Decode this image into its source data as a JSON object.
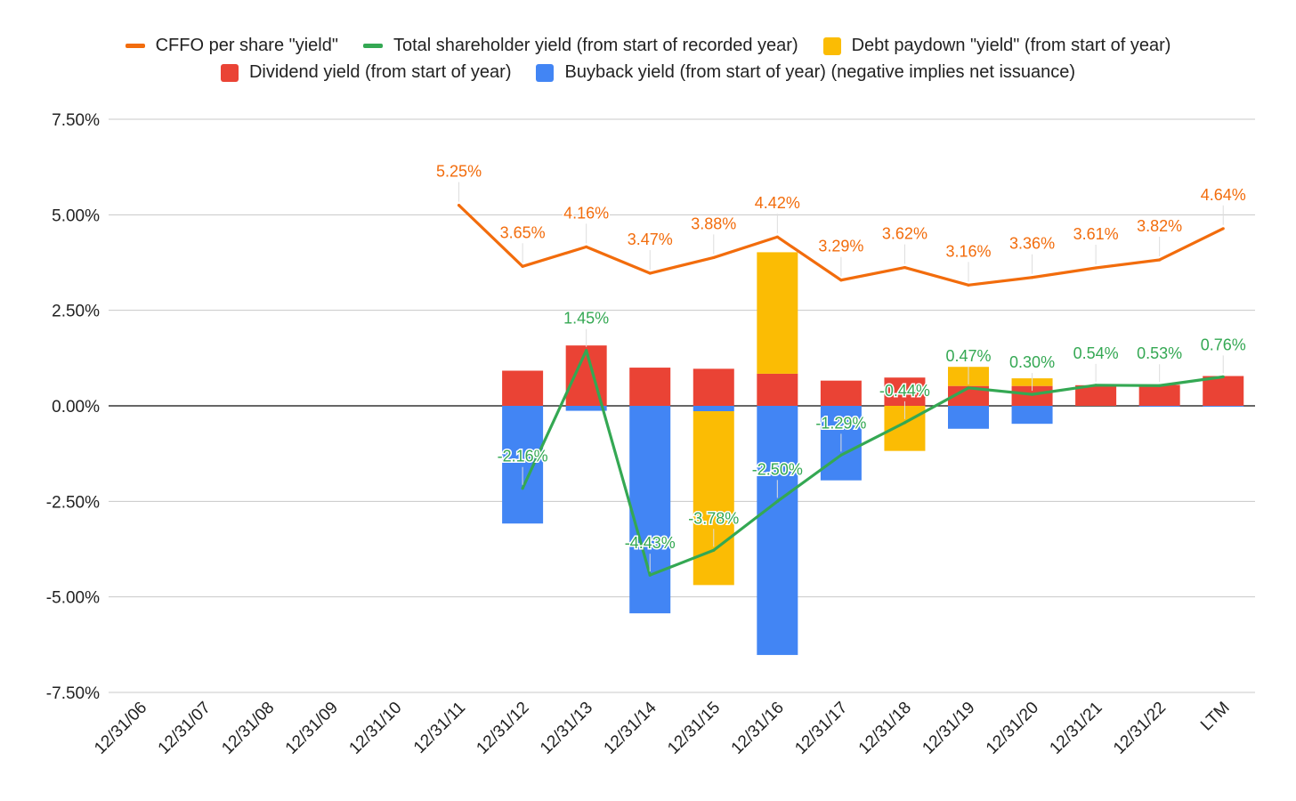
{
  "chart_data": {
    "type": "bar",
    "categories": [
      "12/31/06",
      "12/31/07",
      "12/31/08",
      "12/31/09",
      "12/31/10",
      "12/31/11",
      "12/31/12",
      "12/31/13",
      "12/31/14",
      "12/31/15",
      "12/31/16",
      "12/31/17",
      "12/31/18",
      "12/31/19",
      "12/31/20",
      "12/31/21",
      "12/31/22",
      "LTM"
    ],
    "ylim": [
      -7.5,
      7.5
    ],
    "y_ticks": [
      7.5,
      5.0,
      2.5,
      0.0,
      -2.5,
      -5.0,
      -7.5
    ],
    "y_tick_labels": [
      "7.50%",
      "5.00%",
      "2.50%",
      "0.00%",
      "-2.50%",
      "-5.00%",
      "-7.50%"
    ],
    "grid": true,
    "legend_position": "top",
    "series": [
      {
        "key": "cffo",
        "name": "CFFO per share \"yield\"",
        "kind": "line",
        "color": "#f26c0c",
        "values": [
          null,
          null,
          null,
          null,
          null,
          5.25,
          3.65,
          4.16,
          3.47,
          3.88,
          4.42,
          3.29,
          3.62,
          3.16,
          3.36,
          3.61,
          3.82,
          4.64
        ],
        "labels": [
          "",
          "",
          "",
          "",
          "",
          "5.25%",
          "3.65%",
          "4.16%",
          "3.47%",
          "3.88%",
          "4.42%",
          "3.29%",
          "3.62%",
          "3.16%",
          "3.36%",
          "3.61%",
          "3.82%",
          "4.64%"
        ]
      },
      {
        "key": "total",
        "name": "Total shareholder yield (from start of recorded year)",
        "kind": "line",
        "color": "#34a853",
        "values": [
          null,
          null,
          null,
          null,
          null,
          null,
          -2.16,
          1.45,
          -4.43,
          -3.78,
          -2.5,
          -1.29,
          -0.44,
          0.47,
          0.3,
          0.54,
          0.53,
          0.76
        ],
        "labels": [
          "",
          "",
          "",
          "",
          "",
          "",
          "-2.16%",
          "1.45%",
          "-4.43%",
          "-3.78%",
          "-2.50%",
          "-1.29%",
          "-0.44%",
          "0.47%",
          "0.30%",
          "0.54%",
          "0.53%",
          "0.76%"
        ]
      },
      {
        "key": "debt",
        "name": "Debt paydown \"yield\" (from start of year)",
        "kind": "bar",
        "color": "#fbbc04",
        "values": [
          null,
          null,
          null,
          null,
          null,
          null,
          0,
          0,
          0,
          -4.55,
          3.18,
          0,
          -1.18,
          0.5,
          0.2,
          0,
          0,
          0
        ]
      },
      {
        "key": "dividend",
        "name": "Dividend yield (from start of year)",
        "kind": "bar",
        "color": "#ea4335",
        "values": [
          null,
          null,
          null,
          null,
          null,
          null,
          0.92,
          1.58,
          1.0,
          0.97,
          0.84,
          0.66,
          0.74,
          0.52,
          0.52,
          0.54,
          0.55,
          0.78
        ]
      },
      {
        "key": "buyback",
        "name": "Buyback yield (from start of year) (negative implies net issuance)",
        "kind": "bar",
        "color": "#4285f4",
        "values": [
          null,
          null,
          null,
          null,
          null,
          null,
          -3.08,
          -0.13,
          -5.43,
          -0.14,
          -6.52,
          -1.95,
          0,
          -0.6,
          -0.47,
          0,
          -0.02,
          -0.02
        ]
      }
    ]
  },
  "legend": {
    "row1": [
      {
        "label": "CFFO per share \"yield\"",
        "color": "#f26c0c",
        "shape": "line"
      },
      {
        "label": "Total shareholder yield (from start of recorded year)",
        "color": "#34a853",
        "shape": "line"
      },
      {
        "label": "Debt paydown \"yield\" (from start of year)",
        "color": "#fbbc04",
        "shape": "box"
      }
    ],
    "row2": [
      {
        "label": "Dividend yield (from start of year)",
        "color": "#ea4335",
        "shape": "box"
      },
      {
        "label": "Buyback yield (from start of year) (negative implies net issuance)",
        "color": "#4285f4",
        "shape": "box"
      }
    ]
  }
}
